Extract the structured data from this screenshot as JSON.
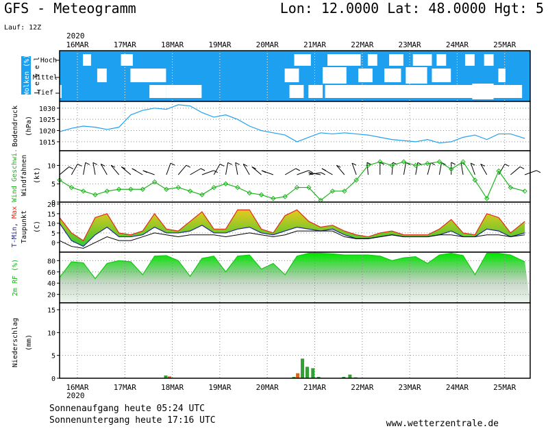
{
  "header": {
    "title": "GFS - Meteogramm",
    "location": "Lon: 12.0000  Lat: 48.0000  Hgt: 5",
    "run": "Lauf: 12Z"
  },
  "footer": {
    "sunrise": "Sonnenaufgang heute 05:24 UTC",
    "sunset": "Sonnenuntergang heute 17:16 UTC",
    "site": "www.wetterzentrale.de"
  },
  "colors": {
    "cloud_bg": "#1ea0f0",
    "pressure_line": "#1ea0f0",
    "wind_speed": "#19b419",
    "temp_fill_top": "#e6c81e",
    "temp_fill_bottom": "#32c832",
    "temp_max_edge": "#e62814",
    "temp_min_edge": "#1e2896",
    "dewpoint": "#000000",
    "rh_fill": "#14c814",
    "precip_green": "#32a032",
    "precip_orange": "#dc6414"
  },
  "chart_data": [
    {
      "type": "heatmap",
      "name": "clouds",
      "ylabel": "Wolken (%)",
      "ylabel2": "L e v e l",
      "title_year_top": "2020",
      "title_year_bottom": "2020",
      "categories": [
        "16MAR",
        "17MAR",
        "18MAR",
        "19MAR",
        "20MAR",
        "21MAR",
        "22MAR",
        "23MAR",
        "24MAR",
        "25MAR"
      ],
      "levels": [
        "Hoch",
        "Mittel",
        "Tief"
      ],
      "x_start": 0,
      "x_end": 9.8,
      "clouds": {
        "Hoch": [
          [
            0.55,
            0.72
          ],
          [
            1.35,
            1.6
          ],
          [
            5.0,
            5.35
          ],
          [
            5.7,
            6.4
          ],
          [
            6.55,
            6.75
          ],
          [
            7.0,
            7.3
          ],
          [
            7.5,
            7.9
          ],
          [
            8.0,
            8.2
          ],
          [
            8.6,
            8.8
          ],
          [
            9.0,
            9.2
          ]
        ],
        "Mittel": [
          [
            0.85,
            1.05
          ],
          [
            1.55,
            2.3
          ],
          [
            4.8,
            5.1
          ],
          [
            5.6,
            6.05
          ],
          [
            6.35,
            6.65
          ],
          [
            6.9,
            7.25
          ],
          [
            7.9,
            8.3
          ],
          [
            9.3,
            9.45
          ]
        ],
        "Tief": [
          [
            0.0,
            0.1
          ],
          [
            1.95,
            2.3
          ],
          [
            2.3,
            3.05
          ],
          [
            4.9,
            5.2
          ],
          [
            5.3,
            5.6
          ],
          [
            5.65,
            9.8
          ]
        ]
      },
      "extra_blocks": [
        [
          5.6,
          6.1,
          "Mittel"
        ],
        [
          7.35,
          7.8,
          "Mittel"
        ],
        [
          8.75,
          9.2,
          "Tief"
        ]
      ]
    },
    {
      "type": "line",
      "name": "pressure",
      "ylabel": "Bodendruck",
      "ylabel2": "(hPa)",
      "ylim": [
        1011,
        1033
      ],
      "yticks": [
        1015,
        1020,
        1025,
        1030
      ],
      "x": [
        0,
        0.25,
        0.5,
        0.75,
        1.0,
        1.25,
        1.5,
        1.75,
        2.0,
        2.25,
        2.5,
        2.75,
        3.0,
        3.25,
        3.5,
        3.75,
        4.0,
        4.25,
        4.5,
        4.75,
        5.0,
        5.25,
        5.5,
        5.75,
        6.0,
        6.25,
        6.5,
        6.75,
        7.0,
        7.25,
        7.5,
        7.75,
        8.0,
        8.25,
        8.5,
        8.75,
        9.0,
        9.25,
        9.5,
        9.8
      ],
      "values": [
        1019.5,
        1021,
        1022,
        1021.5,
        1020.5,
        1021.5,
        1027,
        1029,
        1030,
        1029.5,
        1031.5,
        1031,
        1028,
        1026,
        1027,
        1025,
        1022,
        1020,
        1019,
        1018,
        1015,
        1017,
        1019,
        1018.5,
        1019,
        1018.5,
        1018,
        1017,
        1016,
        1015.5,
        1015,
        1016,
        1014.5,
        1015,
        1017,
        1018,
        1016,
        1018.5,
        1018.5,
        1016.5
      ]
    },
    {
      "type": "line",
      "name": "wind",
      "ylabel": "Wind Geschwi.",
      "ylabel2": "Windfahnen",
      "ylabel3": "(kt)",
      "ylim": [
        0,
        14
      ],
      "yticks": [
        0,
        5,
        10
      ],
      "x": [
        0,
        0.25,
        0.5,
        0.75,
        1.0,
        1.25,
        1.5,
        1.75,
        2.0,
        2.25,
        2.5,
        2.75,
        3.0,
        3.25,
        3.5,
        3.75,
        4.0,
        4.25,
        4.5,
        4.75,
        5.0,
        5.25,
        5.5,
        5.75,
        6.0,
        6.25,
        6.5,
        6.75,
        7.0,
        7.25,
        7.5,
        7.75,
        8.0,
        8.25,
        8.5,
        8.75,
        9.0,
        9.25,
        9.5,
        9.8
      ],
      "values": [
        6,
        4,
        3,
        2,
        3,
        3.5,
        3.5,
        3.5,
        5.5,
        3.5,
        4,
        3,
        2,
        4,
        5,
        4,
        2.5,
        2,
        1,
        1.5,
        4,
        4,
        0.5,
        3,
        3,
        6,
        10,
        11,
        10,
        11,
        10,
        10.5,
        11,
        9,
        11,
        6,
        1,
        8.5,
        4,
        3
      ]
    },
    {
      "type": "area",
      "name": "temperature",
      "ylabel": "T-Min, Max",
      "ylabel2": "Taupunkt",
      "ylabel3": "(C)",
      "ylim": [
        -5,
        21
      ],
      "yticks": [
        0,
        5,
        10,
        15,
        20
      ],
      "x": [
        0,
        0.25,
        0.5,
        0.75,
        1.0,
        1.25,
        1.5,
        1.75,
        2.0,
        2.25,
        2.5,
        2.75,
        3.0,
        3.25,
        3.5,
        3.75,
        4.0,
        4.25,
        4.5,
        4.75,
        5.0,
        5.25,
        5.5,
        5.75,
        6.0,
        6.25,
        6.5,
        6.75,
        7.0,
        7.25,
        7.5,
        7.75,
        8.0,
        8.25,
        8.5,
        8.75,
        9.0,
        9.25,
        9.5,
        9.8
      ],
      "t_max": [
        13,
        5,
        1,
        13,
        15,
        5,
        4,
        6,
        15,
        7,
        6,
        11,
        16,
        7,
        7,
        17,
        17,
        7,
        5,
        14,
        17,
        11,
        8,
        9,
        6,
        4,
        3,
        5,
        6,
        4,
        4,
        4,
        7,
        12,
        5,
        4,
        15,
        13,
        5,
        11
      ],
      "t_min": [
        10,
        1,
        -2,
        4,
        8,
        3,
        3,
        4,
        8,
        5,
        5,
        6,
        9,
        5,
        5,
        7,
        8,
        5,
        4,
        6,
        8,
        7,
        6,
        7,
        4,
        2,
        2,
        3,
        4,
        3,
        3,
        3,
        4,
        6,
        3,
        3,
        7,
        6,
        3,
        5
      ],
      "dewpoint": [
        1,
        -2,
        -3,
        0,
        3,
        1,
        1,
        3,
        5,
        4,
        3,
        4,
        4,
        4,
        3,
        4,
        5,
        4,
        3,
        4,
        6,
        6,
        6,
        6,
        3,
        2,
        2,
        3,
        4,
        3,
        3,
        3,
        4,
        4,
        3,
        3,
        4,
        4,
        3,
        4
      ]
    },
    {
      "type": "area",
      "name": "humidity",
      "ylabel": "2m RF (%)",
      "ylim": [
        5,
        95
      ],
      "yticks": [
        20,
        40,
        60,
        80
      ],
      "x": [
        0,
        0.25,
        0.5,
        0.75,
        1.0,
        1.25,
        1.5,
        1.75,
        2.0,
        2.25,
        2.5,
        2.75,
        3.0,
        3.25,
        3.5,
        3.75,
        4.0,
        4.25,
        4.5,
        4.75,
        5.0,
        5.25,
        5.5,
        5.75,
        6.0,
        6.25,
        6.5,
        6.75,
        7.0,
        7.25,
        7.5,
        7.75,
        8.0,
        8.25,
        8.5,
        8.75,
        9.0,
        9.25,
        9.5,
        9.8
      ],
      "values": [
        50,
        78,
        76,
        48,
        75,
        80,
        78,
        55,
        88,
        89,
        80,
        52,
        84,
        88,
        60,
        88,
        90,
        65,
        75,
        55,
        88,
        93,
        93,
        92,
        90,
        90,
        90,
        88,
        80,
        85,
        87,
        75,
        90,
        93,
        89,
        55,
        93,
        93,
        90,
        78
      ]
    },
    {
      "type": "bar",
      "name": "precipitation",
      "ylabel": "Niederschlag",
      "ylabel2": "(mm)",
      "ylim": [
        0,
        16.5
      ],
      "yticks": [
        0,
        5,
        10,
        15
      ],
      "bars": [
        {
          "x": 2.2,
          "value": 0.6,
          "color": "green"
        },
        {
          "x": 2.28,
          "value": 0.4,
          "color": "orange"
        },
        {
          "x": 4.9,
          "value": 0.3,
          "color": "green"
        },
        {
          "x": 4.98,
          "value": 1.1,
          "color": "orange"
        },
        {
          "x": 5.08,
          "value": 4.3,
          "color": "green"
        },
        {
          "x": 5.18,
          "value": 2.5,
          "color": "green"
        },
        {
          "x": 5.3,
          "value": 2.2,
          "color": "green"
        },
        {
          "x": 5.42,
          "value": 0.3,
          "color": "green"
        },
        {
          "x": 5.95,
          "value": 0.3,
          "color": "green"
        },
        {
          "x": 6.08,
          "value": 0.8,
          "color": "green"
        },
        {
          "x": 6.2,
          "value": 0.2,
          "color": "green"
        }
      ]
    }
  ]
}
